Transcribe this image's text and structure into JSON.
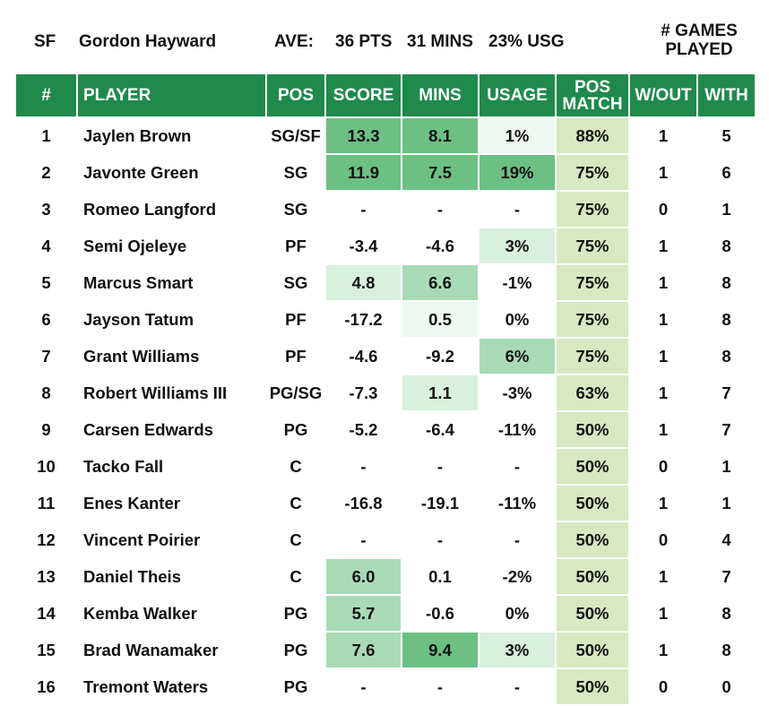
{
  "header": {
    "position": "SF",
    "player": "Gordon Hayward",
    "ave_label": "AVE:",
    "pts": "36 PTS",
    "mins": "31 MINS",
    "usg": "23% USG",
    "games_label_line1": "# GAMES",
    "games_label_line2": "PLAYED"
  },
  "columns": {
    "num": "#",
    "player": "PLAYER",
    "pos": "POS",
    "score": "SCORE",
    "mins": "MINS",
    "usage": "USAGE",
    "pos_match_1": "POS",
    "pos_match_2": "MATCH",
    "without": "W/OUT",
    "with": "WITH"
  },
  "colors": {
    "header_green": "#1f8a4c",
    "pos_match_bg": "#d9e8c2",
    "heat_strong": "#6cc084",
    "heat_mid": "#a8dbb5",
    "heat_light": "#d8f0de",
    "heat_faint": "#eef8f0"
  },
  "rows": [
    {
      "num": "1",
      "player": "Jaylen Brown",
      "pos": "SG/SF",
      "score": "13.3",
      "mins": "8.1",
      "usage": "1%",
      "match": "88%",
      "without": "1",
      "with": "5"
    },
    {
      "num": "2",
      "player": "Javonte Green",
      "pos": "SG",
      "score": "11.9",
      "mins": "7.5",
      "usage": "19%",
      "match": "75%",
      "without": "1",
      "with": "6"
    },
    {
      "num": "3",
      "player": "Romeo Langford",
      "pos": "SG",
      "score": "-",
      "mins": "-",
      "usage": "-",
      "match": "75%",
      "without": "0",
      "with": "1"
    },
    {
      "num": "4",
      "player": "Semi Ojeleye",
      "pos": "PF",
      "score": "-3.4",
      "mins": "-4.6",
      "usage": "3%",
      "match": "75%",
      "without": "1",
      "with": "8"
    },
    {
      "num": "5",
      "player": "Marcus Smart",
      "pos": "SG",
      "score": "4.8",
      "mins": "6.6",
      "usage": "-1%",
      "match": "75%",
      "without": "1",
      "with": "8"
    },
    {
      "num": "6",
      "player": "Jayson Tatum",
      "pos": "PF",
      "score": "-17.2",
      "mins": "0.5",
      "usage": "0%",
      "match": "75%",
      "without": "1",
      "with": "8"
    },
    {
      "num": "7",
      "player": "Grant Williams",
      "pos": "PF",
      "score": "-4.6",
      "mins": "-9.2",
      "usage": "6%",
      "match": "75%",
      "without": "1",
      "with": "8"
    },
    {
      "num": "8",
      "player": "Robert Williams III",
      "pos": "PG/SG",
      "score": "-7.3",
      "mins": "1.1",
      "usage": "-3%",
      "match": "63%",
      "without": "1",
      "with": "7"
    },
    {
      "num": "9",
      "player": "Carsen Edwards",
      "pos": "PG",
      "score": "-5.2",
      "mins": "-6.4",
      "usage": "-11%",
      "match": "50%",
      "without": "1",
      "with": "7"
    },
    {
      "num": "10",
      "player": "Tacko Fall",
      "pos": "C",
      "score": "-",
      "mins": "-",
      "usage": "-",
      "match": "50%",
      "without": "0",
      "with": "1"
    },
    {
      "num": "11",
      "player": "Enes Kanter",
      "pos": "C",
      "score": "-16.8",
      "mins": "-19.1",
      "usage": "-11%",
      "match": "50%",
      "without": "1",
      "with": "1"
    },
    {
      "num": "12",
      "player": "Vincent Poirier",
      "pos": "C",
      "score": "-",
      "mins": "-",
      "usage": "-",
      "match": "50%",
      "without": "0",
      "with": "4"
    },
    {
      "num": "13",
      "player": "Daniel Theis",
      "pos": "C",
      "score": "6.0",
      "mins": "0.1",
      "usage": "-2%",
      "match": "50%",
      "without": "1",
      "with": "7"
    },
    {
      "num": "14",
      "player": "Kemba Walker",
      "pos": "PG",
      "score": "5.7",
      "mins": "-0.6",
      "usage": "0%",
      "match": "50%",
      "without": "1",
      "with": "8"
    },
    {
      "num": "15",
      "player": "Brad Wanamaker",
      "pos": "PG",
      "score": "7.6",
      "mins": "9.4",
      "usage": "3%",
      "match": "50%",
      "without": "1",
      "with": "8"
    },
    {
      "num": "16",
      "player": "Tremont Waters",
      "pos": "PG",
      "score": "-",
      "mins": "-",
      "usage": "-",
      "match": "50%",
      "without": "0",
      "with": "0"
    }
  ]
}
